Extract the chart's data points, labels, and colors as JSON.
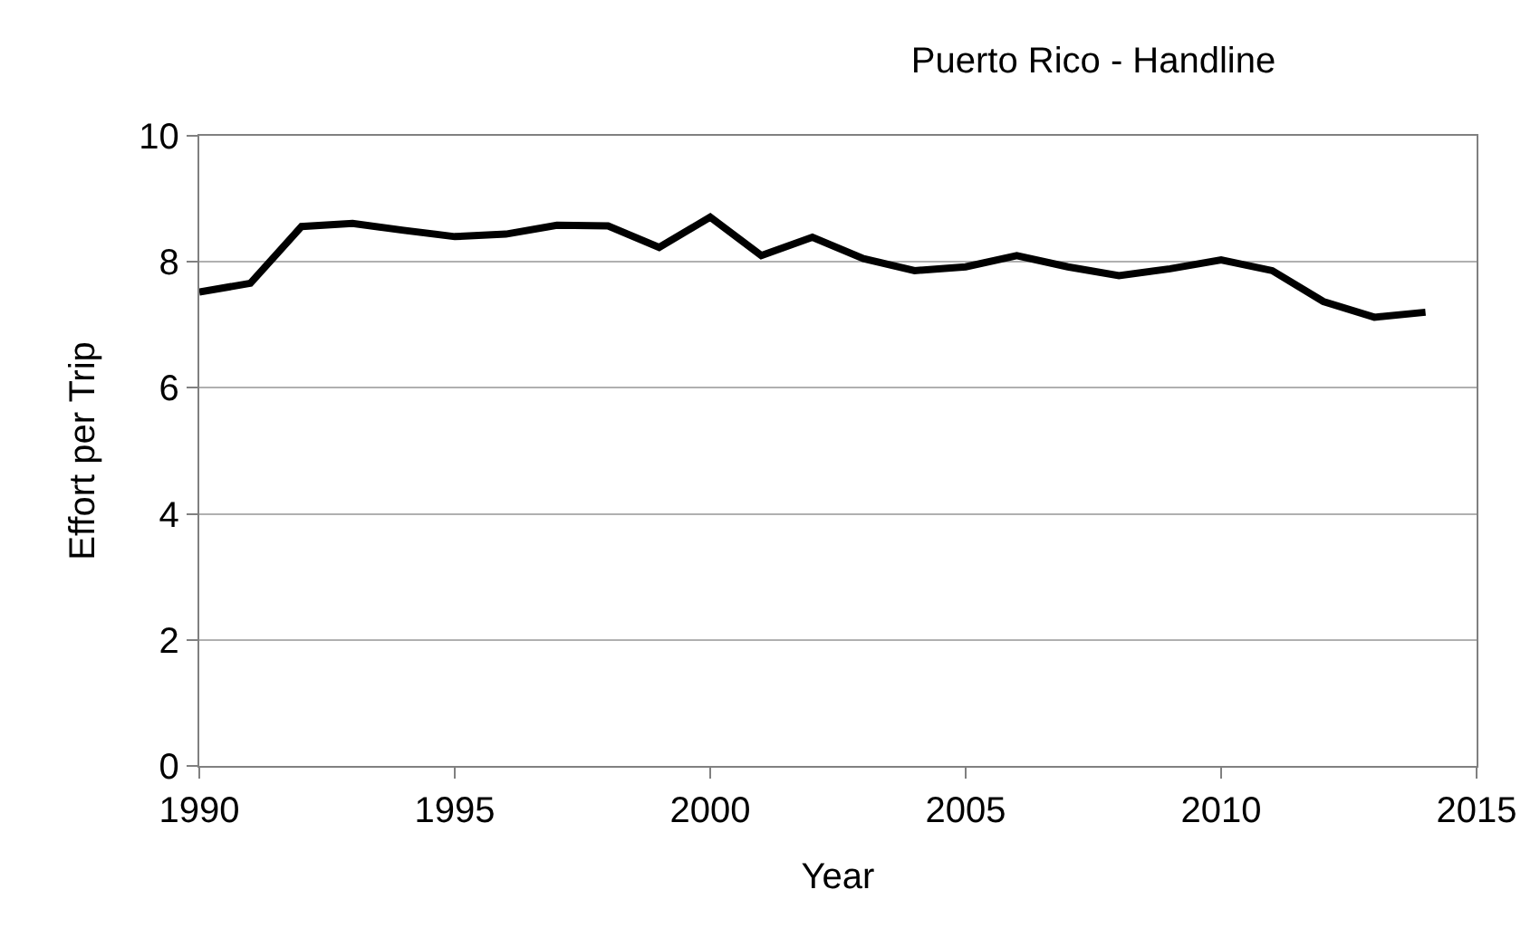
{
  "chart_data": {
    "type": "line",
    "title": "Puerto Rico - Handline",
    "xlabel": "Year",
    "ylabel": "Effort per Trip",
    "x": [
      1990,
      1991,
      1992,
      1993,
      1994,
      1995,
      1996,
      1997,
      1998,
      1999,
      2000,
      2001,
      2002,
      2003,
      2004,
      2005,
      2006,
      2007,
      2008,
      2009,
      2010,
      2011,
      2012,
      2013,
      2014
    ],
    "series": [
      {
        "color": "#000000",
        "values": [
          7.52,
          7.66,
          8.56,
          8.61,
          8.5,
          8.4,
          8.44,
          8.58,
          8.57,
          8.23,
          8.71,
          8.1,
          8.39,
          8.05,
          7.86,
          7.92,
          8.1,
          7.92,
          7.78,
          7.89,
          8.03,
          7.86,
          7.37,
          7.12,
          7.2
        ]
      }
    ],
    "xlim": [
      1990,
      2015
    ],
    "xticks": [
      1990,
      1995,
      2000,
      2005,
      2010,
      2015
    ],
    "ylim": [
      0,
      10
    ],
    "yticks": [
      0,
      2,
      4,
      6,
      8,
      10
    ],
    "grid": "y",
    "marker": "none",
    "line_style": "solid"
  }
}
